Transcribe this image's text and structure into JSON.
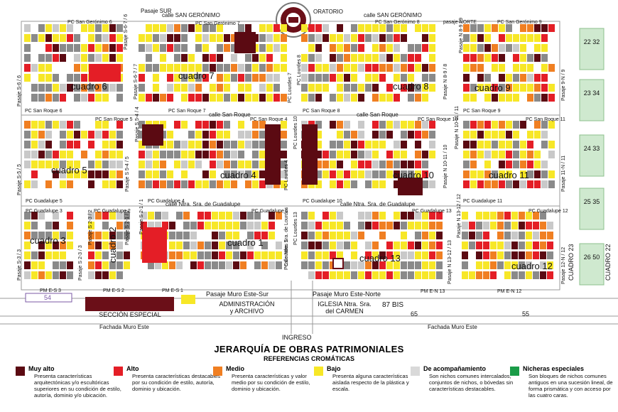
{
  "header": {
    "oratorio": "ORATORIO"
  },
  "streets": {
    "san_geronimo_left": "calle SAN GERÓNIMO",
    "san_geronimo_right": "calle SAN GERÓNIMO",
    "san_roque_left": "calle San Roque",
    "san_roque_right": "calle San Roque",
    "guadalupe_left": "calle Ntra. Sra. de Guadalupe",
    "guadalupe_right": "calle Ntra. Sra. de Guadalupe",
    "pasaje_sur": "Pasaje SUR",
    "pasaje_norte": "pasaje NORTE",
    "muro_sur": "Pasaje Muro Este-Sur",
    "muro_norte": "Pasaje Muro Este-Norte",
    "nave_lourdes": "calle Ntra. Sra. de Lourdes",
    "fachada_left": "Fachada Muro Este",
    "fachada_right": "Fachada Muro Este",
    "ingreso": "INGRESO"
  },
  "cuadros": [
    "cuadro 6",
    "cuadro 7",
    "cuadro 8",
    "cuadro 9",
    "cuadro 5",
    "cuadro 4",
    "cuadro 10",
    "cuadro 11",
    "cuadro 3",
    "cuadro 2",
    "cuadro 1",
    "cuadro 13",
    "cuadro 12"
  ],
  "labels": {
    "pc_san_geronimo_6": "PC San Gerónimo 6",
    "pc_san_geronimo_7": "PC San Gerónimo 7",
    "pc_san_geronimo_8": "PC San Gerónimo 8",
    "pc_san_geronimo_9": "PC San Gerónimo 9",
    "pc_san_roque_6": "PC San Roque 6",
    "pc_san_roque_7": "PC San Roque 7",
    "pc_san_roque_8": "PC San Roque 8",
    "pc_san_roque_9": "PC San Roque 9",
    "pc_san_roque_5": "PC San Roque 5",
    "pc_san_roque_4": "PC San Roque 4",
    "pc_san_roque_10": "PC San Roque 10",
    "pc_san_roque_11": "PC San Roque 11",
    "pc_guadalupe_5": "PC Guadalupe 5",
    "pc_guadalupe_4": "PC Guadalupe 4",
    "pc_guadalupe_10": "PC Guadalupe 10",
    "pc_guadalupe_11": "PC Guadalupe 11",
    "pc_guadalupe_3": "PC Guadalupe 3",
    "pc_guadalupe_2": "PC Guadalupe 2",
    "pc_guadalupe_1": "PC Guadalupe 1",
    "pc_guadalupe_13": "PC Guadalupe 13",
    "pc_guadalupe_12": "PC Guadalupe 12",
    "pm_e_s_3": "PM E-S 3",
    "pm_e_s_2": "PM E-S 2",
    "pm_e_s_1": "PM E-S 1",
    "pm_e_n_13": "PM E-N 13",
    "pm_e_n_12": "PM E-N 12",
    "pc_lourdes_7": "PC Lourdes 7",
    "pc_lourdes_8": "PC Lourdes 8",
    "pc_lourdes_10": "PC Lourdes 10",
    "pc_lourdes_4": "PC Lourdes 4",
    "pc_lourdes_13": "PC Lourdes 13",
    "pc_lourdes_1": "PC Lourdes 1",
    "pasaje_s_6_6": "Pasaje S-6 / 6",
    "pasaje_s_6_7_6": "Pasaje S-6-7 / 6",
    "pasaje_s_6_7_7": "Pasaje S-6-7 / 7",
    "pasaje_n_8_9_8": "Pasaje N 8-9 / 8",
    "pasaje_n_8_9_9": "Pasaje N 8-9 / 9",
    "pasaje_9_n_9": "Pasaje 9-N / 9",
    "pasaje_s_5_5": "Pasaje S-5 / 5",
    "pasaje_s_5_4_5": "Pasaje S 5-4 / 5",
    "pasaje_s_5_4_4": "Pasaje S 5-4 / 4",
    "pasaje_n_10_11_10": "Pasaje N 10-11 / 10",
    "pasaje_n_10_11_11": "Pasaje N 10-11 / 11",
    "pasaje_11_n_11": "Pasaje 11-N / 11",
    "pasaje_s_3_3": "Pasaje S-3 / 3",
    "pasaje_s_2_3_3": "Pasaje S 2-3 / 3",
    "pasaje_s_2_3_2": "Pasaje S 2-3 / 2",
    "pasaje_s_2_1_2": "Pasaje S 2-1 / 2",
    "pasaje_s_2_1_1": "Pasaje S 2-1 / 1",
    "pasaje_n_13_12_13": "Pasaje N 13-12 / 13",
    "pasaje_n_13_12_12": "Pasaje N 13-12 / 12",
    "pasaje_12_n_12": "Pasaje 12-N / 12"
  },
  "sections": {
    "seccion_especial": "SECCIÓN ESPECIAL",
    "administracion": "ADMINISTRACIÓN\ny ARCHIVO",
    "iglesia": "IGLESIA Ntra. Sra.\ndel CARMEN",
    "bis_87": "87 BIS",
    "n54": "54",
    "n65": "65",
    "n55": "55",
    "cuadro_23": "CUADRO 23",
    "cuadro_22": "CUADRO 22"
  },
  "nicheras": [
    [
      "22",
      "32"
    ],
    [
      "23",
      "34"
    ],
    [
      "24",
      "33"
    ],
    [
      "25",
      "35"
    ],
    [
      "26",
      "50"
    ]
  ],
  "title": "JERARQUÍA DE OBRAS PATRIMONIALES",
  "subtitle": "REFERENCIAS CROMÁTICAS",
  "legend": [
    {
      "key": "muy_alto",
      "name": "Muy alto",
      "color": "#5b0a12",
      "desc": "Presenta características arquitectónicas y/o escultóricas superiores en su condición de estilo, autoría, dominio y/o ubicación."
    },
    {
      "key": "alto",
      "name": "Alto",
      "color": "#e41e26",
      "desc": "Presenta características destacables por su condición de estilo, autoría, dominio y ubicación."
    },
    {
      "key": "medio",
      "name": "Medio",
      "color": "#f07f22",
      "desc": "Presenta características y valor medio por su condición de estilo, dominio y ubicación."
    },
    {
      "key": "bajo",
      "name": "Bajo",
      "color": "#f7e727",
      "desc": "Presenta alguna características aislada respecto de la plástica y escala."
    },
    {
      "key": "acompanamiento",
      "name": "De acompañamiento",
      "color": "#d9d9d9",
      "desc": "Son nichos comunes intercalados, conjuntos de nichos, o bóvedas sin características destacables."
    },
    {
      "key": "nicheras",
      "name": "Nicheras especiales",
      "color": "#1a9c48",
      "desc": "Son bloques de nichos comunes antiguos en una sucesión lineal, de forma prismática y con acceso por las cuatro caras."
    }
  ],
  "colors": {
    "muy_alto": "#5b0a12",
    "alto": "#e41e26",
    "medio": "#f07f22",
    "bajo": "#f7e727",
    "gris": "#8a8a8a",
    "gris_claro": "#c9c9c9",
    "verde_claro": "#cfe9cf"
  }
}
